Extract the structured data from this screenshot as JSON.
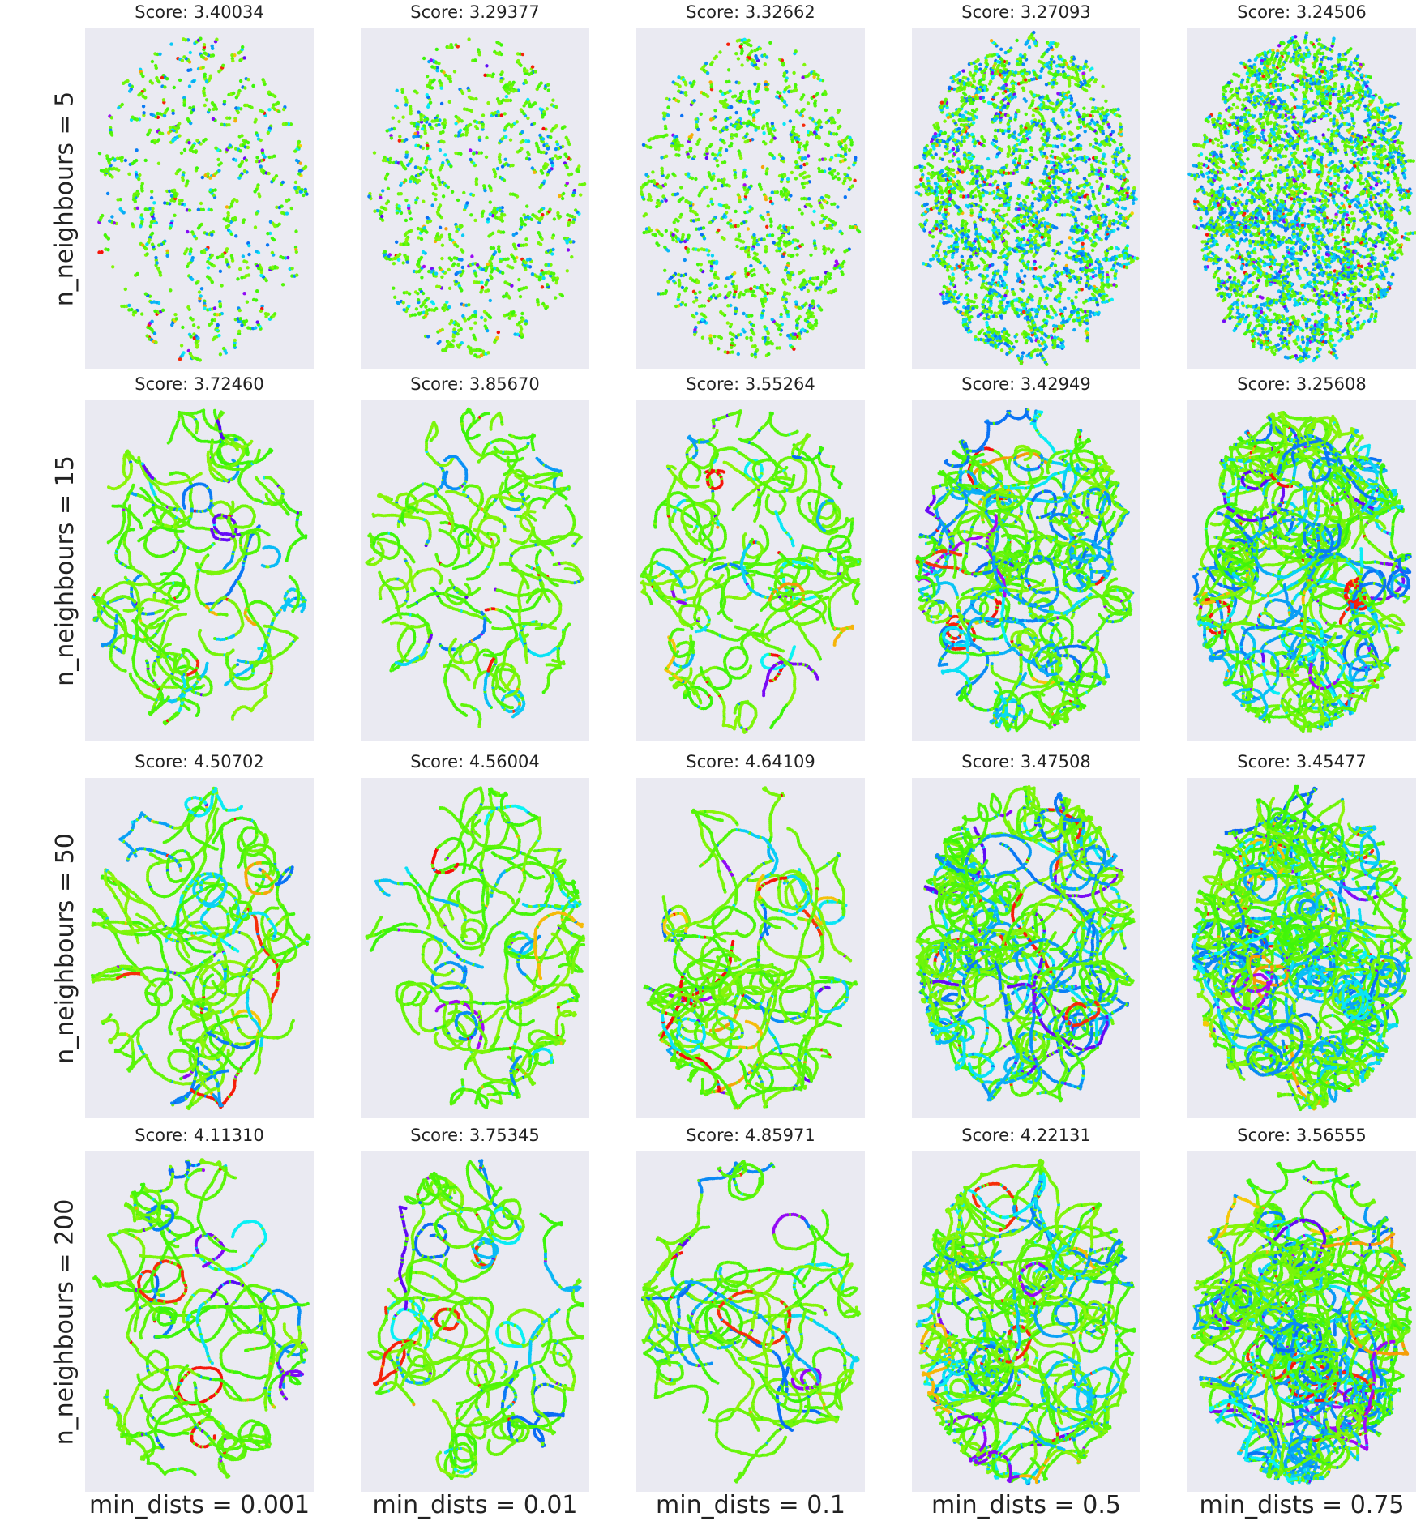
{
  "chart_data": {
    "type": "scatter",
    "layout": "small-multiples grid",
    "grid": true,
    "row_labels": [
      "n_neighbours = 5",
      "n_neighbours = 15",
      "n_neighbours = 50",
      "n_neighbours = 200"
    ],
    "col_labels": [
      "min_dists = 0.001",
      "min_dists = 0.01",
      "min_dists = 0.1",
      "min_dists = 0.5",
      "min_dists = 0.75"
    ],
    "panels": [
      [
        {
          "title": "Score: 3.40034"
        },
        {
          "title": "Score: 3.29377"
        },
        {
          "title": "Score: 3.32662"
        },
        {
          "title": "Score: 3.27093"
        },
        {
          "title": "Score: 3.24506"
        }
      ],
      [
        {
          "title": "Score: 3.72460"
        },
        {
          "title": "Score: 3.85670"
        },
        {
          "title": "Score: 3.55264"
        },
        {
          "title": "Score: 3.42949"
        },
        {
          "title": "Score: 3.25608"
        }
      ],
      [
        {
          "title": "Score: 4.50702"
        },
        {
          "title": "Score: 4.56004"
        },
        {
          "title": "Score: 4.64109"
        },
        {
          "title": "Score: 3.47508"
        },
        {
          "title": "Score: 3.45477"
        }
      ],
      [
        {
          "title": "Score: 4.11310"
        },
        {
          "title": "Score: 3.75345"
        },
        {
          "title": "Score: 4.85971"
        },
        {
          "title": "Score: 4.22131"
        },
        {
          "title": "Score: 3.56555"
        }
      ]
    ],
    "colormap": "hsv",
    "panel_background": "#eaeaf2",
    "dominant_color": "#8cf03c",
    "secondary_color": "#1eb4f0"
  }
}
